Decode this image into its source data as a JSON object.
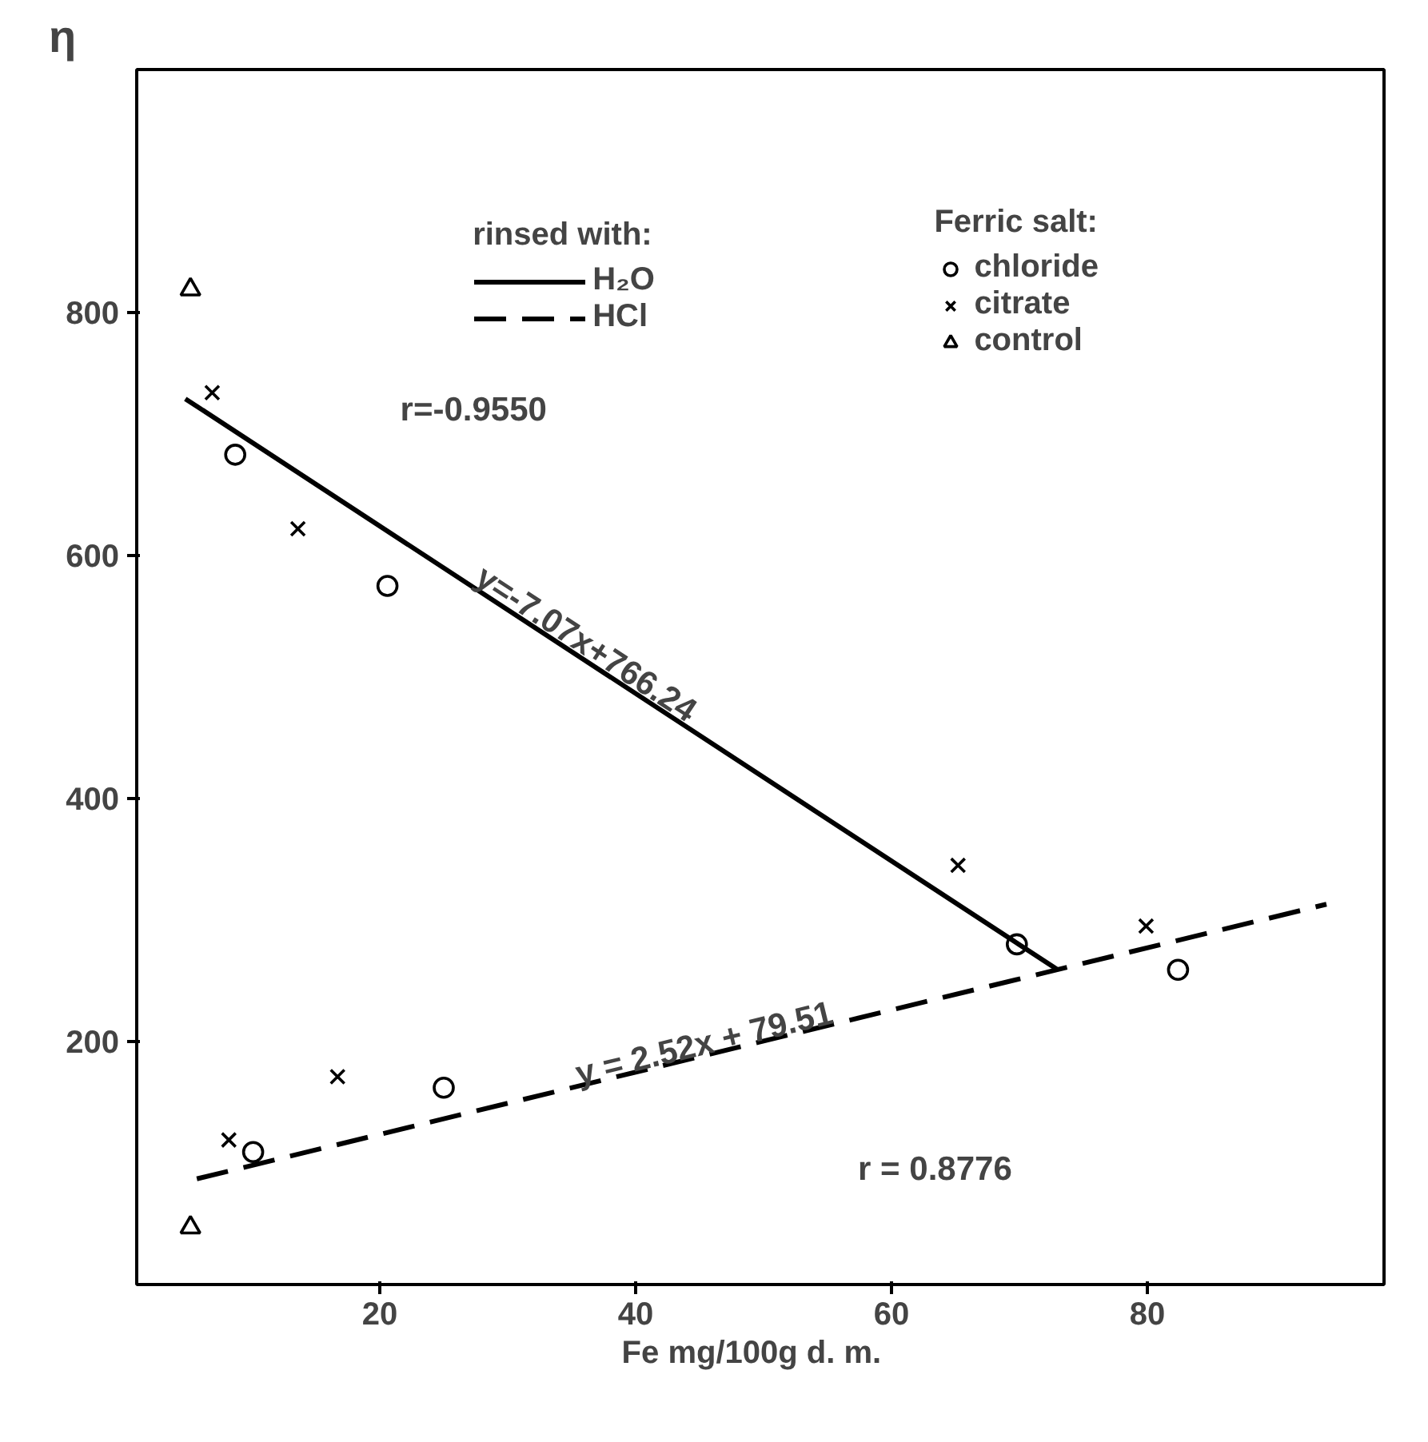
{
  "chart_data": {
    "type": "scatter",
    "xlabel": "Fe  mg/100g  d. m.",
    "ylabel": "η",
    "xlim": [
      1,
      98.5
    ],
    "ylim": [
      0,
      1000
    ],
    "xticks": [
      20,
      40,
      60,
      80
    ],
    "yticks": [
      200,
      400,
      600,
      800
    ],
    "grid": false,
    "legend": "top right",
    "annotations": [
      "rinsed with:",
      "Ferric salt:",
      "r=-0.9550",
      "y=-7.07x+766.24",
      "y = 2.52x + 79.51",
      "r = 0.8776"
    ],
    "series": [
      {
        "name": "H₂O",
        "type": "line",
        "line_style": "solid",
        "color": "#000000",
        "x": [
          4.8,
          73
        ],
        "values": [
          729,
          259
        ]
      },
      {
        "name": "HCl",
        "type": "line",
        "line_style": "dashed",
        "color": "#000000",
        "x": [
          5.7,
          94
        ],
        "values": [
          87,
          313
        ]
      },
      {
        "name": "chloride",
        "marker": "circle",
        "color": "#000000",
        "x": [
          8.7,
          20.6,
          69.8,
          10.1,
          25,
          82.4
        ],
        "values": [
          683,
          575,
          280,
          109,
          162,
          259
        ]
      },
      {
        "name": "citrate",
        "marker": "cross",
        "color": "#000000",
        "x": [
          6.9,
          13.6,
          65.2,
          8.2,
          16.7,
          79.9
        ],
        "values": [
          734,
          622,
          345,
          119,
          171,
          295
        ]
      },
      {
        "name": "control",
        "marker": "triangle",
        "color": "#000000",
        "x": [
          5.2,
          5.2
        ],
        "values": [
          819,
          47
        ]
      }
    ]
  }
}
